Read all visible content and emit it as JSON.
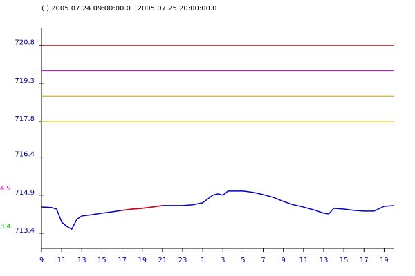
{
  "chart_data": {
    "type": "line",
    "title": "( ) 2005 07 24 09:00:00.0   2005 07 25 20:00:00.0",
    "x": [
      0,
      1,
      1.5,
      2,
      2.5,
      3,
      3.5,
      4,
      5,
      6,
      7,
      8,
      9,
      10,
      11,
      12,
      13,
      14,
      15,
      16,
      17,
      17.5,
      18,
      18.5,
      19,
      20,
      21,
      22,
      23,
      24,
      25,
      26,
      27,
      28,
      28.5,
      29,
      30,
      31,
      32,
      33,
      34,
      35
    ],
    "series": [
      {
        "color": "#0000c8",
        "values": [
          714.43,
          714.41,
          714.35,
          713.84,
          713.67,
          713.56,
          713.94,
          714.08,
          714.13,
          714.19,
          714.24,
          714.3,
          714.35,
          714.38,
          714.43,
          714.49,
          714.49,
          714.49,
          714.52,
          714.6,
          714.9,
          714.95,
          714.9,
          715.06,
          715.06,
          715.06,
          715.01,
          714.92,
          714.81,
          714.65,
          714.52,
          714.43,
          714.32,
          714.19,
          714.16,
          714.38,
          714.35,
          714.3,
          714.27,
          714.27,
          714.46,
          714.49
        ]
      },
      {
        "color": "#e00000",
        "values": [
          null,
          null,
          null,
          null,
          null,
          null,
          null,
          null,
          null,
          null,
          null,
          714.3,
          714.35,
          714.38,
          714.43,
          714.49,
          null,
          null,
          null,
          null,
          null,
          null,
          null,
          null,
          null,
          null,
          null,
          null,
          null,
          null,
          null,
          null,
          null,
          null,
          null,
          null,
          null,
          null,
          null,
          null,
          null,
          null
        ]
      }
    ],
    "xlim": [
      0,
      35
    ],
    "xticks": [
      {
        "value": 0,
        "label": "9"
      },
      {
        "value": 2,
        "label": "11"
      },
      {
        "value": 4,
        "label": "13"
      },
      {
        "value": 6,
        "label": "15"
      },
      {
        "value": 8,
        "label": "17"
      },
      {
        "value": 10,
        "label": "19"
      },
      {
        "value": 12,
        "label": "21"
      },
      {
        "value": 14,
        "label": "23"
      },
      {
        "value": 16,
        "label": "1"
      },
      {
        "value": 18,
        "label": "3"
      },
      {
        "value": 20,
        "label": "5"
      },
      {
        "value": 22,
        "label": "7"
      },
      {
        "value": 24,
        "label": "9"
      },
      {
        "value": 26,
        "label": "11"
      },
      {
        "value": 28,
        "label": "13"
      },
      {
        "value": 30,
        "label": "15"
      },
      {
        "value": 32,
        "label": "17"
      },
      {
        "value": 34,
        "label": "19"
      }
    ],
    "ylim": [
      712.8,
      721.5
    ],
    "yticks": [
      720.8,
      719.3,
      717.8,
      716.4,
      714.9,
      713.4
    ],
    "hlines": [
      {
        "value": 720.8,
        "color": "#e00000"
      },
      {
        "value": 719.8,
        "color": "#e000e0"
      },
      {
        "value": 718.8,
        "color": "#c8a000"
      },
      {
        "value": 717.8,
        "color": "#e8d000"
      }
    ],
    "annotations": [
      {
        "text": "4.9",
        "y": 714.9,
        "color": "#c000c0"
      },
      {
        "text": "3.4",
        "y": 713.4,
        "color": "#00b000"
      }
    ]
  }
}
